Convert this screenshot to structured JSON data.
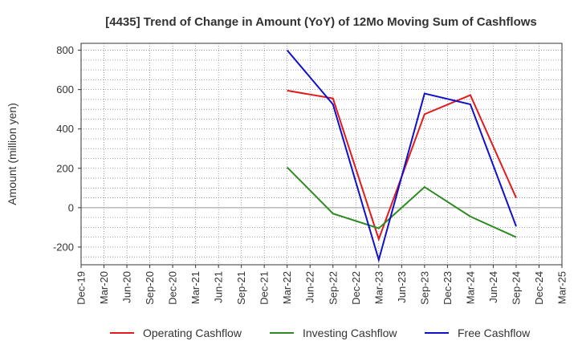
{
  "chart_data": {
    "type": "line",
    "title": "[4435]  Trend of Change in Amount (YoY) of 12Mo Moving Sum of Cashflows",
    "ylabel": "Amount (million yen)",
    "xlabel": "",
    "ylim": [
      -290,
      835
    ],
    "yticks": [
      800,
      600,
      400,
      200,
      0,
      -200
    ],
    "categories": [
      "Dec-19",
      "Mar-20",
      "Jun-20",
      "Sep-20",
      "Dec-20",
      "Mar-21",
      "Jun-21",
      "Sep-21",
      "Dec-21",
      "Mar-22",
      "Jun-22",
      "Sep-22",
      "Dec-22",
      "Mar-23",
      "Jun-23",
      "Sep-23",
      "Dec-23",
      "Mar-24",
      "Jun-24",
      "Sep-24",
      "Dec-24",
      "Mar-25"
    ],
    "series": [
      {
        "name": "Operating Cashflow",
        "color": "#e31a1c",
        "points": [
          {
            "x": "Mar-22",
            "y": 595
          },
          {
            "x": "Sep-22",
            "y": 555
          },
          {
            "x": "Mar-23",
            "y": -160
          },
          {
            "x": "Sep-23",
            "y": 475
          },
          {
            "x": "Mar-24",
            "y": 572
          },
          {
            "x": "Sep-24",
            "y": 50
          }
        ]
      },
      {
        "name": "Investing Cashflow",
        "color": "#2e8b22",
        "points": [
          {
            "x": "Mar-22",
            "y": 205
          },
          {
            "x": "Sep-22",
            "y": -30
          },
          {
            "x": "Mar-23",
            "y": -105
          },
          {
            "x": "Sep-23",
            "y": 105
          },
          {
            "x": "Mar-24",
            "y": -45
          },
          {
            "x": "Sep-24",
            "y": -150
          }
        ]
      },
      {
        "name": "Free Cashflow",
        "color": "#1010cc",
        "points": [
          {
            "x": "Mar-22",
            "y": 800
          },
          {
            "x": "Sep-22",
            "y": 525
          },
          {
            "x": "Mar-23",
            "y": -265
          },
          {
            "x": "Sep-23",
            "y": 580
          },
          {
            "x": "Mar-24",
            "y": 525
          },
          {
            "x": "Sep-24",
            "y": -95
          }
        ]
      }
    ],
    "legend": "bottom"
  }
}
